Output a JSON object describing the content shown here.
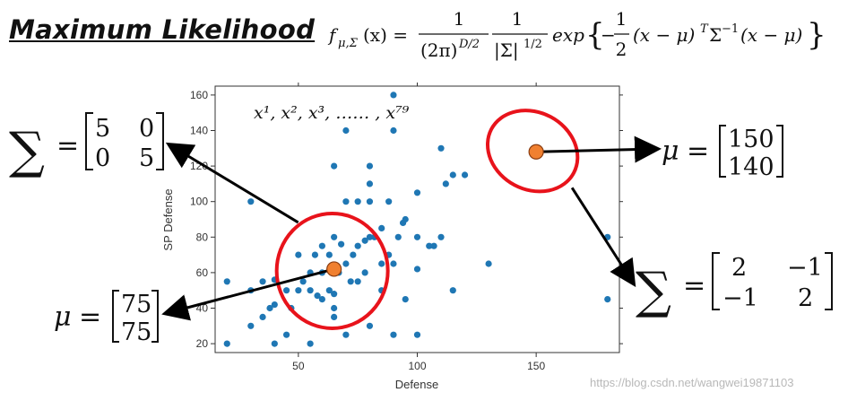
{
  "title": "Maximum Likelihood",
  "formula": {
    "lhs": "f",
    "lhs_sub": "μ,Σ",
    "lhs_arg": "(x) =",
    "frac1_num": "1",
    "frac1_den_base": "(2π)",
    "frac1_den_exp": "D/2",
    "frac2_num": "1",
    "frac2_den_base": "|Σ|",
    "frac2_den_exp": "1/2",
    "exp_word": "exp",
    "inner_prefix": "−",
    "inner_frac_num": "1",
    "inner_frac_den": "2",
    "inner_a": "(x − μ)",
    "inner_sup_t": "T",
    "inner_sigma": "Σ",
    "inner_sup_inv": "−1",
    "inner_b": "(x − μ)"
  },
  "chart_data": {
    "type": "scatter",
    "xlabel": "Defense",
    "ylabel": "SP Defense",
    "xlim": [
      15,
      185
    ],
    "ylim": [
      15,
      165
    ],
    "xticks": [
      50,
      100,
      150
    ],
    "yticks": [
      20,
      40,
      60,
      80,
      100,
      120,
      140,
      160
    ],
    "grid": false,
    "series": [
      {
        "color": "#1f77b4",
        "points": [
          [
            20,
            55
          ],
          [
            20,
            20
          ],
          [
            30,
            50
          ],
          [
            30,
            30
          ],
          [
            35,
            55
          ],
          [
            35,
            35
          ],
          [
            38,
            40
          ],
          [
            40,
            42
          ],
          [
            45,
            25
          ],
          [
            40,
            56
          ],
          [
            45,
            50
          ],
          [
            47,
            40
          ],
          [
            50,
            50
          ],
          [
            50,
            70
          ],
          [
            52,
            55
          ],
          [
            55,
            20
          ],
          [
            55,
            60
          ],
          [
            55,
            50
          ],
          [
            57,
            70
          ],
          [
            58,
            47
          ],
          [
            60,
            60
          ],
          [
            60,
            45
          ],
          [
            60,
            75
          ],
          [
            63,
            70
          ],
          [
            63,
            50
          ],
          [
            65,
            80
          ],
          [
            65,
            48
          ],
          [
            65,
            40
          ],
          [
            65,
            35
          ],
          [
            65,
            120
          ],
          [
            67,
            60
          ],
          [
            68,
            76
          ],
          [
            70,
            25
          ],
          [
            70,
            65
          ],
          [
            70,
            140
          ],
          [
            70,
            100
          ],
          [
            72,
            55
          ],
          [
            73,
            70
          ],
          [
            75,
            100
          ],
          [
            75,
            75
          ],
          [
            75,
            55
          ],
          [
            78,
            78
          ],
          [
            78,
            60
          ],
          [
            80,
            80
          ],
          [
            80,
            110
          ],
          [
            80,
            100
          ],
          [
            80,
            120
          ],
          [
            80,
            30
          ],
          [
            82,
            80
          ],
          [
            85,
            65
          ],
          [
            85,
            85
          ],
          [
            85,
            50
          ],
          [
            88,
            100
          ],
          [
            88,
            70
          ],
          [
            90,
            65
          ],
          [
            90,
            160
          ],
          [
            90,
            140
          ],
          [
            90,
            25
          ],
          [
            92,
            80
          ],
          [
            94,
            88
          ],
          [
            95,
            90
          ],
          [
            95,
            45
          ],
          [
            100,
            25
          ],
          [
            100,
            62
          ],
          [
            100,
            80
          ],
          [
            100,
            105
          ],
          [
            105,
            75
          ],
          [
            107,
            75
          ],
          [
            110,
            80
          ],
          [
            110,
            130
          ],
          [
            112,
            110
          ],
          [
            115,
            115
          ],
          [
            115,
            50
          ],
          [
            120,
            115
          ],
          [
            130,
            65
          ],
          [
            180,
            80
          ],
          [
            180,
            45
          ],
          [
            30,
            100
          ],
          [
            40,
            20
          ]
        ]
      }
    ],
    "annotations": {
      "sample_label": "x¹, x², x³, …… , x⁷⁹",
      "cluster1_center": [
        65,
        62
      ],
      "cluster2_center": [
        150,
        128
      ]
    }
  },
  "matrices": {
    "sigma_left": {
      "sum_symbol": "∑",
      "equals": "=",
      "rows": [
        [
          "5",
          "0"
        ],
        [
          "0",
          "5"
        ]
      ]
    },
    "mu_right": {
      "mu_symbol": "μ",
      "equals": "=",
      "rows": [
        [
          "150"
        ],
        [
          "140"
        ]
      ]
    },
    "mu_left": {
      "mu_symbol": "μ",
      "equals": "=",
      "rows": [
        [
          "75"
        ],
        [
          "75"
        ]
      ]
    },
    "sigma_right": {
      "sum_symbol": "∑",
      "equals": "=",
      "rows": [
        [
          "2",
          "−1"
        ],
        [
          "−1",
          "2"
        ]
      ]
    }
  },
  "watermark": "https://blog.csdn.net/wangwei19871103",
  "colors": {
    "point": "#1f77b4",
    "highlight_fill": "#f08030",
    "highlight_stroke": "#8a3c10",
    "ellipse": "#e8131b",
    "arrow": "#000000"
  }
}
